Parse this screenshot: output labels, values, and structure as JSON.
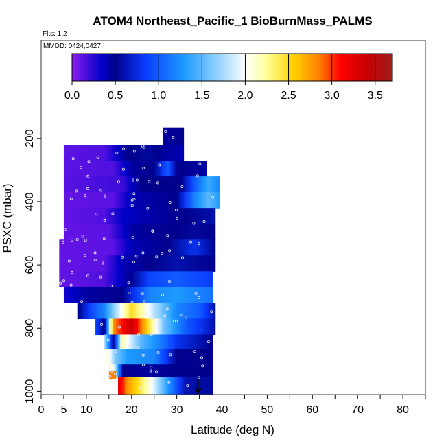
{
  "chart_data": {
    "type": "heatmap",
    "title": "ATOM4 Northeast_Pacific_1 BioBurnMass_PALMS",
    "subtitle_flights": "Flts: 1,2",
    "subtitle_dates": "MMDD: 0424,0427",
    "xlabel": "Latitude (deg N)",
    "ylabel": "PSXC (mbar)",
    "xlim": [
      0,
      85
    ],
    "ylim": [
      1010,
      -110
    ],
    "x_ticks": [
      0,
      5,
      10,
      20,
      30,
      40,
      50,
      60,
      70,
      80
    ],
    "y_ticks": [
      200,
      400,
      600,
      800,
      1000
    ],
    "colorbar": {
      "range": [
        0,
        3.7
      ],
      "ticks": [
        0.0,
        0.5,
        1.0,
        1.5,
        2.0,
        2.5,
        3.0,
        3.5
      ],
      "tick_labels": [
        "0.0",
        "0.5",
        "1.0",
        "1.5",
        "2.0",
        "2.5",
        "3.0",
        "3.5"
      ],
      "colors": [
        "#8b1cf0",
        "#0000c8",
        "#00008c",
        "#0a3cff",
        "#1e9bff",
        "#a8dcff",
        "#ffffff",
        "#ffff96",
        "#ffd200",
        "#ff8200",
        "#ff0000",
        "#c80000",
        "#a01e1e"
      ],
      "stops": [
        0.0,
        0.35,
        0.5,
        0.85,
        1.3,
        1.75,
        2.0,
        2.25,
        2.55,
        2.85,
        3.1,
        3.4,
        3.7
      ]
    },
    "marker": {
      "type": "arrow",
      "x": 34.7
    },
    "bands": [
      {
        "p_top": 165,
        "p_bot": 220,
        "x_start": 27,
        "x_end": 31.5,
        "segments": [
          [
            27,
            0.45
          ],
          [
            31.5,
            0.5
          ]
        ]
      },
      {
        "p_top": 220,
        "p_bot": 270,
        "x_start": 5,
        "x_end": 31.5,
        "segments": [
          [
            5,
            0.12
          ],
          [
            14,
            0.15
          ],
          [
            19,
            0.5
          ],
          [
            24,
            0.55
          ],
          [
            27,
            0.45
          ],
          [
            31.5,
            0.4
          ]
        ]
      },
      {
        "p_top": 270,
        "p_bot": 320,
        "x_start": 5,
        "x_end": 36.5,
        "segments": [
          [
            5,
            0.12
          ],
          [
            16,
            0.15
          ],
          [
            20,
            0.45
          ],
          [
            25,
            0.5
          ],
          [
            28,
            1.0
          ],
          [
            30,
            0.5
          ],
          [
            36.5,
            0.45
          ]
        ]
      },
      {
        "p_top": 320,
        "p_bot": 370,
        "x_start": 5,
        "x_end": 39.5,
        "segments": [
          [
            5,
            0.12
          ],
          [
            18,
            0.2
          ],
          [
            22,
            0.5
          ],
          [
            31,
            0.5
          ],
          [
            34,
            1.0
          ],
          [
            37,
            1.4
          ],
          [
            39.5,
            1.2
          ]
        ]
      },
      {
        "p_top": 370,
        "p_bot": 420,
        "x_start": 5,
        "x_end": 39.5,
        "segments": [
          [
            5,
            0.1
          ],
          [
            16,
            0.12
          ],
          [
            20,
            0.4
          ],
          [
            30,
            0.5
          ],
          [
            34,
            1.2
          ],
          [
            37,
            1.5
          ],
          [
            39.5,
            1.3
          ]
        ]
      },
      {
        "p_top": 420,
        "p_bot": 470,
        "x_start": 5,
        "x_end": 38.5,
        "segments": [
          [
            5,
            0.1
          ],
          [
            14,
            0.15
          ],
          [
            18,
            0.35
          ],
          [
            26,
            0.45
          ],
          [
            32,
            0.5
          ],
          [
            38.5,
            0.6
          ]
        ]
      },
      {
        "p_top": 470,
        "p_bot": 520,
        "x_start": 5,
        "x_end": 38.5,
        "segments": [
          [
            5,
            0.1
          ],
          [
            15,
            0.12
          ],
          [
            20,
            0.45
          ],
          [
            30,
            0.5
          ],
          [
            34,
            0.55
          ],
          [
            38.5,
            0.5
          ]
        ]
      },
      {
        "p_top": 520,
        "p_bot": 570,
        "x_start": 4,
        "x_end": 38.5,
        "segments": [
          [
            4,
            0.1
          ],
          [
            16,
            0.12
          ],
          [
            20,
            0.4
          ],
          [
            28,
            0.5
          ],
          [
            34,
            0.8
          ],
          [
            38.5,
            0.5
          ]
        ]
      },
      {
        "p_top": 570,
        "p_bot": 620,
        "x_start": 4,
        "x_end": 38.5,
        "segments": [
          [
            4,
            0.1
          ],
          [
            14,
            0.12
          ],
          [
            18,
            0.4
          ],
          [
            24,
            0.5
          ],
          [
            30,
            0.6
          ],
          [
            38.5,
            0.5
          ]
        ]
      },
      {
        "p_top": 620,
        "p_bot": 670,
        "x_start": 4,
        "x_end": 38,
        "segments": [
          [
            4,
            0.1
          ],
          [
            14,
            0.15
          ],
          [
            20,
            0.5
          ],
          [
            24,
            0.9
          ],
          [
            30,
            1.0
          ],
          [
            38,
            0.85
          ]
        ]
      },
      {
        "p_top": 670,
        "p_bot": 720,
        "x_start": 5,
        "x_end": 38,
        "segments": [
          [
            5,
            0.3
          ],
          [
            10,
            0.45
          ],
          [
            18,
            0.5
          ],
          [
            24,
            1.2
          ],
          [
            30,
            1.3
          ],
          [
            38,
            1.1
          ]
        ]
      },
      {
        "p_top": 720,
        "p_bot": 770,
        "x_start": 8,
        "x_end": 38.5,
        "segments": [
          [
            8,
            0.45
          ],
          [
            11,
            0.9
          ],
          [
            14,
            1.2
          ],
          [
            20,
            2.5
          ],
          [
            25,
            1.8
          ],
          [
            30,
            1.2
          ],
          [
            35,
            1.0
          ],
          [
            38.5,
            0.6
          ]
        ]
      },
      {
        "p_top": 770,
        "p_bot": 820,
        "x_start": 12,
        "x_end": 38.5,
        "segments": [
          [
            12,
            0.9
          ],
          [
            14,
            0.5
          ],
          [
            16,
            2.8
          ],
          [
            20,
            3.4
          ],
          [
            24,
            2.4
          ],
          [
            27,
            1.6
          ],
          [
            32,
            1.0
          ],
          [
            38.5,
            0.6
          ]
        ]
      },
      {
        "p_top": 820,
        "p_bot": 865,
        "x_start": 14,
        "x_end": 38,
        "segments": [
          [
            14,
            1.8
          ],
          [
            16,
            0.5
          ],
          [
            18,
            2.2
          ],
          [
            22,
            1.5
          ],
          [
            26,
            1.2
          ],
          [
            30,
            0.8
          ],
          [
            38,
            0.5
          ]
        ]
      },
      {
        "p_top": 865,
        "p_bot": 915,
        "x_start": 14.5,
        "x_end": 38,
        "segments": [
          [
            14.5,
            2.2
          ],
          [
            16.5,
            1.6
          ],
          [
            19,
            1.3
          ],
          [
            25,
            1.2
          ],
          [
            30,
            0.5
          ],
          [
            38,
            0.5
          ]
        ]
      },
      {
        "p_top": 915,
        "p_bot": 955,
        "x_start": 15,
        "x_end": 38,
        "segments": [
          [
            15,
            2.2
          ],
          [
            16.5,
            1.8
          ],
          [
            18,
            0.5
          ],
          [
            24,
            0.45
          ],
          [
            30,
            0.5
          ],
          [
            38,
            0.5
          ]
        ]
      },
      {
        "p_top": 935,
        "p_bot": 960,
        "x_start": 15,
        "x_end": 16.5,
        "segments": [
          [
            15,
            2.85
          ]
        ]
      },
      {
        "p_top": 955,
        "p_bot": 1010,
        "x_start": 17,
        "x_end": 38,
        "segments": [
          [
            17,
            3.3
          ],
          [
            19,
            2.8
          ],
          [
            22,
            2.4
          ],
          [
            25,
            1.9
          ],
          [
            28,
            1.3
          ],
          [
            32,
            0.6
          ],
          [
            38,
            0.55
          ]
        ]
      }
    ]
  }
}
